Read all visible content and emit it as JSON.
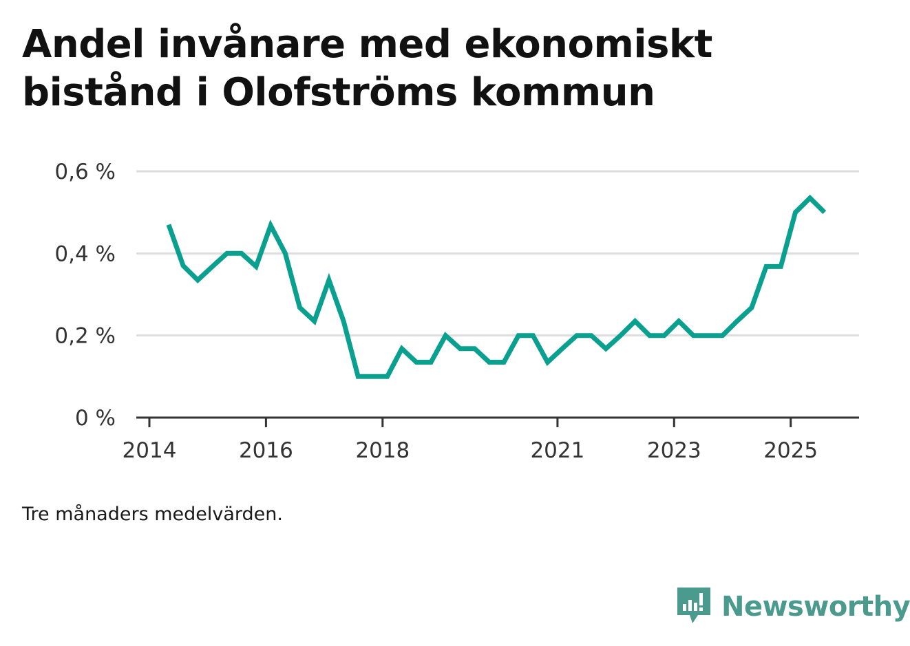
{
  "title": "Andel invånare med ekonomiskt bistånd i Olofströms kommun",
  "note": "Tre månaders medelvärden.",
  "brand": {
    "name": "Newsworthy",
    "icon": "newsworthy-logo-icon"
  },
  "colors": {
    "line": "#0aa08f",
    "grid": "#dddddd",
    "axis": "#333333",
    "brand": "#4a9a8e"
  },
  "chart_data": {
    "type": "line",
    "title": "Andel invånare med ekonomiskt bistånd i Olofströms kommun",
    "xlabel": "",
    "ylabel": "",
    "ylim": [
      0,
      0.6
    ],
    "xlim": [
      2014,
      2025.9
    ],
    "grid": true,
    "y_ticks": [
      {
        "value": 0,
        "label": "0 %"
      },
      {
        "value": 0.2,
        "label": "0,2 %"
      },
      {
        "value": 0.4,
        "label": "0,4 %"
      },
      {
        "value": 0.6,
        "label": "0,6 %"
      }
    ],
    "x_ticks": [
      {
        "value": 2014,
        "label": "2014"
      },
      {
        "value": 2016,
        "label": "2016"
      },
      {
        "value": 2018,
        "label": "2018"
      },
      {
        "value": 2021,
        "label": "2021"
      },
      {
        "value": 2023,
        "label": "2023"
      },
      {
        "value": 2025,
        "label": "2025"
      }
    ],
    "series": [
      {
        "name": "Andel invånare med ekonomiskt bistånd",
        "x": [
          2014.33,
          2014.58,
          2014.83,
          2015.08,
          2015.33,
          2015.58,
          2015.83,
          2016.08,
          2016.33,
          2016.58,
          2016.83,
          2017.08,
          2017.33,
          2017.58,
          2017.83,
          2018.08,
          2018.33,
          2018.58,
          2018.83,
          2019.08,
          2019.33,
          2019.58,
          2019.83,
          2020.08,
          2020.33,
          2020.58,
          2020.83,
          2021.08,
          2021.33,
          2021.58,
          2021.83,
          2022.08,
          2022.33,
          2022.58,
          2022.83,
          2023.08,
          2023.33,
          2023.58,
          2023.83,
          2024.08,
          2024.33,
          2024.58,
          2024.83,
          2025.08,
          2025.33,
          2025.58
        ],
        "values": [
          0.47,
          0.37,
          0.335,
          0.368,
          0.4,
          0.4,
          0.368,
          0.468,
          0.4,
          0.268,
          0.235,
          0.335,
          0.235,
          0.1,
          0.1,
          0.1,
          0.168,
          0.135,
          0.135,
          0.2,
          0.168,
          0.168,
          0.135,
          0.135,
          0.2,
          0.2,
          0.135,
          0.168,
          0.2,
          0.2,
          0.168,
          0.2,
          0.235,
          0.2,
          0.2,
          0.235,
          0.2,
          0.2,
          0.2,
          0.235,
          0.268,
          0.368,
          0.368,
          0.5,
          0.535,
          0.5
        ]
      }
    ]
  }
}
